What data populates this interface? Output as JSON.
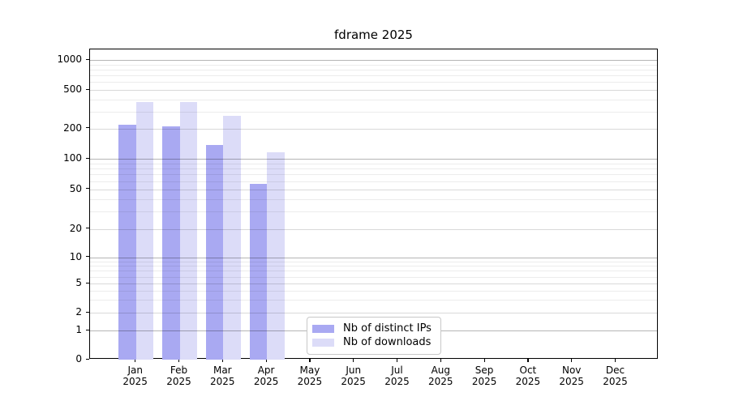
{
  "title": "fdrame 2025",
  "chart_data": {
    "type": "bar",
    "title": "fdrame 2025",
    "categories": [
      "Jan 2025",
      "Feb 2025",
      "Mar 2025",
      "Apr 2025",
      "May 2025",
      "Jun 2025",
      "Jul 2025",
      "Aug 2025",
      "Sep 2025",
      "Oct 2025",
      "Nov 2025",
      "Dec 2025"
    ],
    "series": [
      {
        "name": "Nb of distinct IPs",
        "color": "#a9a9f2",
        "values": [
          218,
          210,
          138,
          57,
          0,
          0,
          0,
          0,
          0,
          0,
          0,
          0
        ]
      },
      {
        "name": "Nb of downloads",
        "color": "#dcdcf8",
        "values": [
          375,
          375,
          268,
          115,
          0,
          0,
          0,
          0,
          0,
          0,
          0,
          0
        ]
      }
    ],
    "yticks": [
      0,
      1,
      2,
      5,
      10,
      20,
      50,
      100,
      200,
      500,
      1000
    ],
    "decade_ticks": [
      1,
      10,
      100,
      1000
    ],
    "minor_tick_multipliers": [
      3,
      4,
      6,
      7,
      8,
      9
    ],
    "yscale": "log with zero baseline (symlog-like)",
    "ylim": [
      0,
      1100
    ],
    "xlabel": "",
    "ylabel": "",
    "grid": "horizontal major + minor gridlines",
    "legend_position": "inside plot, lower center"
  }
}
